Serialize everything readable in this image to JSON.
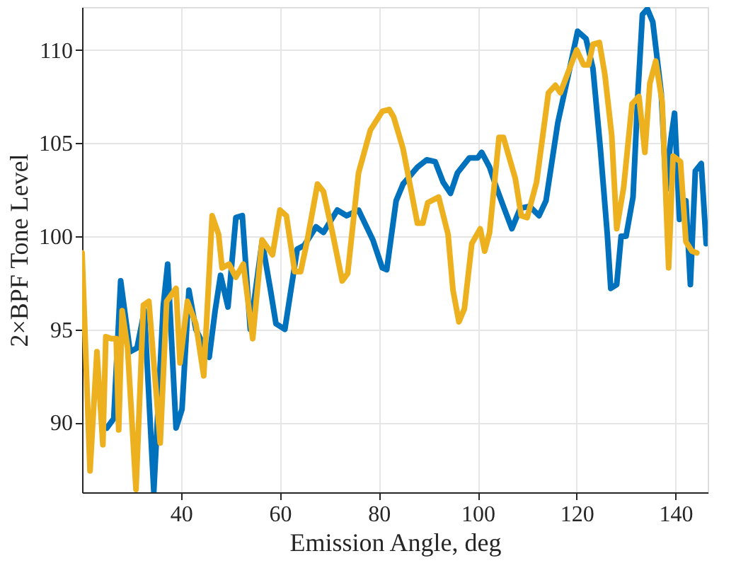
{
  "chart_data": {
    "type": "line",
    "xlabel": "Emission Angle, deg",
    "ylabel": "2×BPF Tone Level",
    "xlim": [
      20,
      146.5
    ],
    "ylim": [
      86.25,
      112.3
    ],
    "xticks": [
      40,
      60,
      80,
      100,
      120,
      140
    ],
    "yticks": [
      90,
      95,
      100,
      105,
      110
    ],
    "grid": true,
    "line_style": "solid",
    "series": [
      {
        "color": "#0072bd",
        "x": [
          25,
          26.4,
          27.8,
          29.7,
          31.1,
          32.6,
          34.5,
          36.4,
          37.3,
          39,
          40.2,
          41.6,
          43,
          45.7,
          46.9,
          48,
          49.5,
          51.1,
          52.4,
          54,
          56.4,
          58.1,
          59.2,
          61,
          63.5,
          64.9,
          67.3,
          68.8,
          71.6,
          73.5,
          75.9,
          78.8,
          80.7,
          81.6,
          83.5,
          84.9,
          87.8,
          89.7,
          91.4,
          93,
          94.5,
          95.9,
          98.3,
          100,
          100.8,
          102.4,
          103.8,
          105.2,
          106.9,
          108.6,
          110.5,
          112.4,
          113.8,
          116.2,
          118.6,
          120.2,
          121.9,
          123.3,
          124.8,
          126.2,
          126.9,
          128.1,
          129,
          130,
          131.4,
          132.4,
          133.3,
          134.3,
          135.4,
          137.1,
          138.1,
          139,
          139.8,
          140.8,
          142.1,
          143,
          144,
          145.2,
          146.2
        ],
        "values": [
          89.7,
          90.2,
          97.6,
          93.8,
          94,
          96,
          86.3,
          96.2,
          98.5,
          89.7,
          90.7,
          97.1,
          95,
          93.5,
          96,
          97.9,
          96.2,
          101,
          101.1,
          95,
          99.7,
          97.1,
          95.3,
          95,
          99.3,
          99.5,
          100.5,
          100.2,
          101.4,
          101.1,
          101.4,
          99.8,
          98.3,
          98.2,
          101.9,
          102.8,
          103.7,
          104.1,
          104,
          102.9,
          102.3,
          103.4,
          104.2,
          104.2,
          104.5,
          103.7,
          102.6,
          101.6,
          100.4,
          101.5,
          101.6,
          101.1,
          101.9,
          106.1,
          109,
          111,
          110.6,
          109,
          104.7,
          100.1,
          97.2,
          97.4,
          100,
          100,
          102.1,
          107.7,
          111.9,
          112.2,
          111.5,
          107.7,
          102.5,
          105.1,
          106.6,
          100.9,
          101.9,
          97.4,
          103.5,
          103.9,
          99.6
        ]
      },
      {
        "color": "#edb120",
        "x": [
          20,
          21.6,
          23,
          24.2,
          24.8,
          25.9,
          26.9,
          27.4,
          28.1,
          29.2,
          30.9,
          32.4,
          33.5,
          34.5,
          35.8,
          37.1,
          39,
          39.8,
          41.3,
          43,
          44.6,
          46.3,
          47.6,
          48.3,
          49.7,
          51.1,
          52.6,
          54.5,
          56.4,
          58.5,
          60,
          61.3,
          63,
          64.2,
          65.4,
          67.6,
          68.8,
          70.7,
          72.6,
          73.7,
          75.9,
          78.3,
          80.7,
          82.1,
          83,
          84.9,
          87.8,
          88.9,
          89.9,
          92.1,
          94,
          95,
          96.2,
          97.3,
          98.8,
          100.5,
          101.4,
          102.4,
          104.3,
          105.2,
          107.6,
          108.8,
          110,
          111.9,
          114.3,
          115.7,
          116.7,
          120,
          121.4,
          122.4,
          123.3,
          124.6,
          125.7,
          127.1,
          128.1,
          129.5,
          131.2,
          132.6,
          133.8,
          134.8,
          136,
          137.3,
          138.6,
          139.5,
          141,
          142.1,
          143.3,
          144.3
        ],
        "values": [
          99.1,
          87.4,
          93.8,
          88.8,
          94.6,
          94.5,
          94.5,
          89.6,
          96,
          94,
          86.4,
          96.3,
          96.5,
          93.2,
          88.9,
          96.5,
          97.2,
          93.2,
          96.5,
          95.3,
          92.5,
          101.1,
          100.1,
          98.3,
          98.5,
          97.8,
          98.5,
          94.5,
          99.8,
          99,
          101.4,
          101.1,
          98.1,
          98.1,
          99.6,
          102.8,
          102.4,
          100.1,
          97.6,
          98,
          103.4,
          105.7,
          106.7,
          106.8,
          106.4,
          104.7,
          100.7,
          100.7,
          101.8,
          102.1,
          100.1,
          97.1,
          95.4,
          96.1,
          99.6,
          100.4,
          99.2,
          100.2,
          105.3,
          105.3,
          103.1,
          101.1,
          101,
          102.9,
          107.7,
          108.1,
          107.7,
          110,
          109.2,
          109.2,
          110.3,
          110.4,
          108.7,
          105.4,
          100.4,
          102.6,
          107.1,
          107.5,
          104.5,
          108.2,
          109.4,
          107.2,
          98.3,
          104.3,
          104,
          99.7,
          99.2,
          99.1
        ]
      }
    ]
  }
}
